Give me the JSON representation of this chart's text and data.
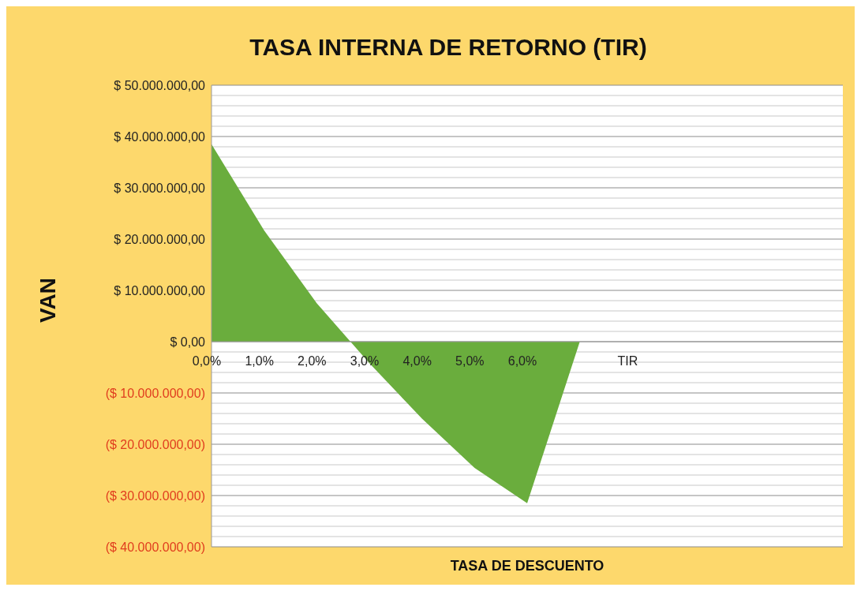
{
  "chart_data": {
    "type": "area",
    "title": "TASA INTERNA DE RETORNO (TIR)",
    "xlabel": "TASA DE DESCUENTO",
    "ylabel": "VAN",
    "categories": [
      "0,0%",
      "1,0%",
      "2,0%",
      "3,0%",
      "4,0%",
      "5,0%",
      "6,0%",
      null,
      "TIR",
      null,
      null,
      null,
      null
    ],
    "series": [
      {
        "color": "#6aad3d",
        "values": [
          38500000,
          21700000,
          7500000,
          -4200000,
          -15000000,
          -24600000,
          -31500000,
          0,
          null,
          null,
          null,
          null,
          null
        ]
      }
    ],
    "ylim": [
      -40000000,
      50000000
    ],
    "yticks": [
      {
        "value": -40000000,
        "label": "($ 40.000.000,00)"
      },
      {
        "value": -38000000,
        "label": null
      },
      {
        "value": -36000000,
        "label": null
      },
      {
        "value": -34000000,
        "label": null
      },
      {
        "value": -32000000,
        "label": null
      },
      {
        "value": -30000000,
        "label": "($ 30.000.000,00)"
      },
      {
        "value": -28000000,
        "label": null
      },
      {
        "value": -26000000,
        "label": null
      },
      {
        "value": -24000000,
        "label": null
      },
      {
        "value": -22000000,
        "label": null
      },
      {
        "value": -20000000,
        "label": "($ 20.000.000,00)"
      },
      {
        "value": -18000000,
        "label": null
      },
      {
        "value": -16000000,
        "label": null
      },
      {
        "value": -14000000,
        "label": null
      },
      {
        "value": -12000000,
        "label": null
      },
      {
        "value": -10000000,
        "label": "($ 10.000.000,00)"
      },
      {
        "value": -8000000,
        "label": null
      },
      {
        "value": -6000000,
        "label": null
      },
      {
        "value": -4000000,
        "label": null
      },
      {
        "value": -2000000,
        "label": null
      },
      {
        "value": 0,
        "label": "$ 0,00"
      },
      {
        "value": 2000000,
        "label": null
      },
      {
        "value": 4000000,
        "label": null
      },
      {
        "value": 6000000,
        "label": null
      },
      {
        "value": 8000000,
        "label": null
      },
      {
        "value": 10000000,
        "label": "$ 10.000.000,00"
      },
      {
        "value": 12000000,
        "label": null
      },
      {
        "value": 14000000,
        "label": null
      },
      {
        "value": 16000000,
        "label": null
      },
      {
        "value": 18000000,
        "label": null
      },
      {
        "value": 20000000,
        "label": "$ 20.000.000,00"
      },
      {
        "value": 22000000,
        "label": null
      },
      {
        "value": 24000000,
        "label": null
      },
      {
        "value": 26000000,
        "label": null
      },
      {
        "value": 28000000,
        "label": null
      },
      {
        "value": 30000000,
        "label": "$ 30.000.000,00"
      },
      {
        "value": 32000000,
        "label": null
      },
      {
        "value": 34000000,
        "label": null
      },
      {
        "value": 36000000,
        "label": null
      },
      {
        "value": 38000000,
        "label": null
      },
      {
        "value": 40000000,
        "label": "$ 40.000.000,00"
      },
      {
        "value": 42000000,
        "label": null
      },
      {
        "value": 44000000,
        "label": null
      },
      {
        "value": 46000000,
        "label": null
      },
      {
        "value": 48000000,
        "label": null
      },
      {
        "value": 50000000,
        "label": "$ 50.000.000,00"
      }
    ],
    "grid": "y"
  }
}
